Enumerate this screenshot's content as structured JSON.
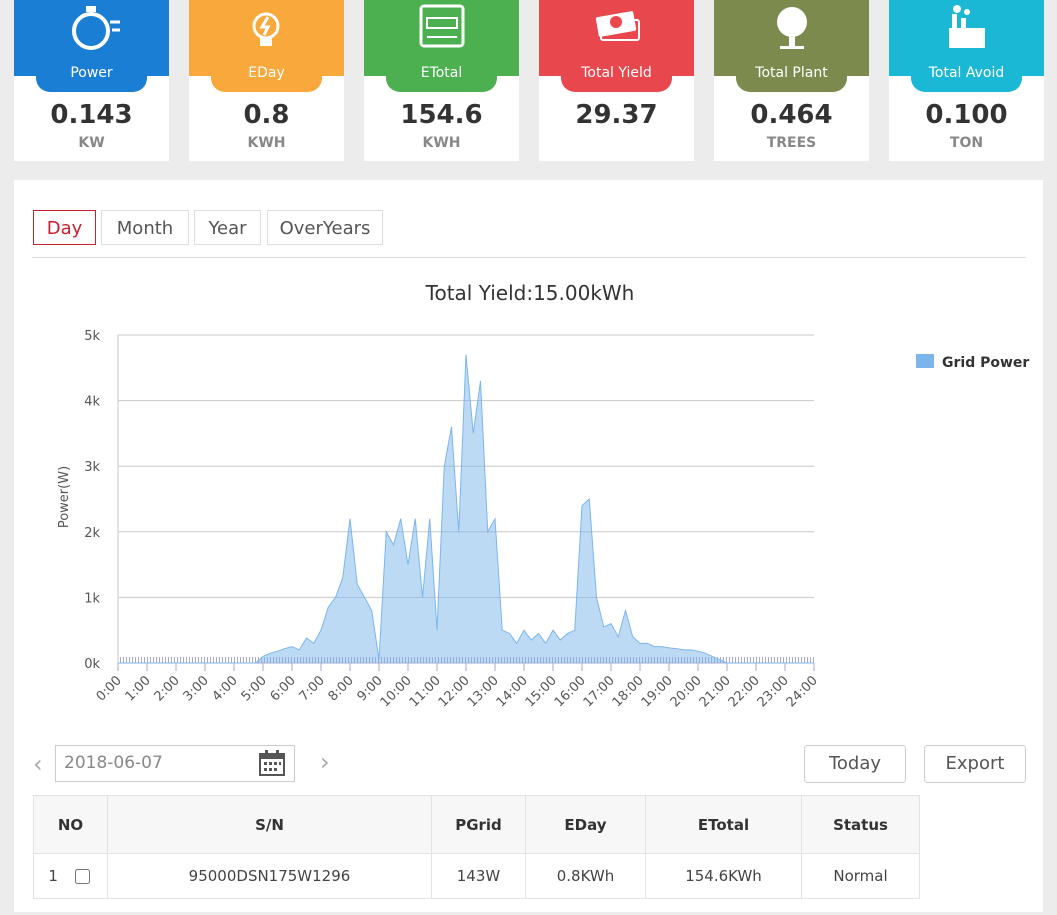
{
  "cards": [
    {
      "label": "Power",
      "value": "0.143",
      "unit": "KW"
    },
    {
      "label": "EDay",
      "value": "0.8",
      "unit": "KWH"
    },
    {
      "label": "ETotal",
      "value": "154.6",
      "unit": "KWH"
    },
    {
      "label": "Total Yield",
      "value": "29.37",
      "unit": ""
    },
    {
      "label": "Total Plant",
      "value": "0.464",
      "unit": "TREES"
    },
    {
      "label": "Total Avoid",
      "value": "0.100",
      "unit": "TON"
    }
  ],
  "tabs": [
    "Day",
    "Month",
    "Year",
    "OverYears"
  ],
  "chart_data": {
    "type": "area",
    "title": "Total Yield:15.00kWh",
    "y_label": "Power(W)",
    "x": [
      0,
      4.75,
      5,
      5.25,
      5.5,
      5.75,
      6,
      6.25,
      6.5,
      6.75,
      7,
      7.25,
      7.5,
      7.75,
      8,
      8.25,
      8.5,
      8.75,
      9,
      9.25,
      9.5,
      9.75,
      10,
      10.25,
      10.5,
      10.75,
      11,
      11.25,
      11.5,
      11.75,
      12,
      12.25,
      12.5,
      12.75,
      13,
      13.25,
      13.5,
      13.75,
      14,
      14.25,
      14.5,
      14.75,
      15,
      15.25,
      15.5,
      15.75,
      16,
      16.25,
      16.5,
      16.75,
      17,
      17.25,
      17.5,
      17.75,
      18,
      18.25,
      18.5,
      18.75,
      19,
      19.25,
      19.5,
      19.75,
      20,
      20.25,
      20.5,
      20.75,
      21,
      24
    ],
    "series": [
      {
        "name": "Grid Power",
        "color": "#7cb5ec",
        "values": [
          0,
          0,
          100,
          150,
          180,
          220,
          250,
          200,
          380,
          300,
          500,
          850,
          1000,
          1300,
          2200,
          1200,
          1000,
          800,
          50,
          2000,
          1800,
          2200,
          1500,
          2200,
          1000,
          2200,
          500,
          3000,
          3600,
          2000,
          4700,
          3500,
          4300,
          2000,
          2200,
          500,
          450,
          300,
          500,
          350,
          450,
          300,
          500,
          350,
          450,
          500,
          2400,
          2500,
          1000,
          550,
          600,
          400,
          800,
          400,
          300,
          300,
          250,
          250,
          230,
          220,
          200,
          200,
          180,
          150,
          100,
          50,
          0,
          0
        ]
      }
    ],
    "xlim": [
      0,
      24
    ],
    "xticks": [
      {
        "value": 0,
        "label": "0:00"
      },
      {
        "value": 1,
        "label": "1:00"
      },
      {
        "value": 2,
        "label": "2:00"
      },
      {
        "value": 3,
        "label": "3:00"
      },
      {
        "value": 4,
        "label": "4:00"
      },
      {
        "value": 5,
        "label": "5:00"
      },
      {
        "value": 6,
        "label": "6:00"
      },
      {
        "value": 7,
        "label": "7:00"
      },
      {
        "value": 8,
        "label": "8:00"
      },
      {
        "value": 9,
        "label": "9:00"
      },
      {
        "value": 10,
        "label": "10:00"
      },
      {
        "value": 11,
        "label": "11:00"
      },
      {
        "value": 12,
        "label": "12:00"
      },
      {
        "value": 13,
        "label": "13:00"
      },
      {
        "value": 14,
        "label": "14:00"
      },
      {
        "value": 15,
        "label": "15:00"
      },
      {
        "value": 16,
        "label": "16:00"
      },
      {
        "value": 17,
        "label": "17:00"
      },
      {
        "value": 18,
        "label": "18:00"
      },
      {
        "value": 19,
        "label": "19:00"
      },
      {
        "value": 20,
        "label": "20:00"
      },
      {
        "value": 21,
        "label": "21:00"
      },
      {
        "value": 22,
        "label": "22:00"
      },
      {
        "value": 23,
        "label": "23:00"
      },
      {
        "value": 24,
        "label": "24:00"
      }
    ],
    "ylim": [
      0,
      5000
    ],
    "yticks": [
      {
        "value": 0,
        "label": "0k"
      },
      {
        "value": 1000,
        "label": "1k"
      },
      {
        "value": 2000,
        "label": "2k"
      },
      {
        "value": 3000,
        "label": "3k"
      },
      {
        "value": 4000,
        "label": "4k"
      },
      {
        "value": 5000,
        "label": "5k"
      }
    ],
    "grid": true,
    "legend": "right"
  },
  "date": "2018-06-07",
  "buttons": [
    "Today",
    "Export"
  ],
  "table": {
    "headers": [
      "NO",
      "S/N",
      "PGrid",
      "EDay",
      "ETotal",
      "Status"
    ],
    "rows": [
      [
        "1",
        "95000DSN175W1296",
        "143W",
        "0.8KWh",
        "154.6KWh",
        "Normal"
      ]
    ]
  }
}
